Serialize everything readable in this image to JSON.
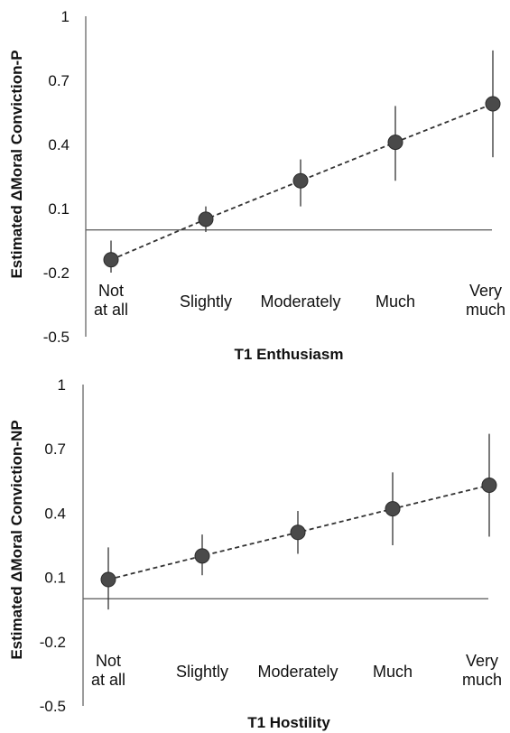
{
  "chart_data": [
    {
      "type": "scatter",
      "xlabel": "T1 Enthusiasm",
      "ylabel": "Estimated ΔMoral Conviction-P",
      "categories": [
        [
          "Not",
          "at all"
        ],
        [
          "Slightly"
        ],
        [
          "Moderately"
        ],
        [
          "Much"
        ],
        [
          "Very",
          "much"
        ]
      ],
      "values": [
        -0.14,
        0.05,
        0.23,
        0.41,
        0.59
      ],
      "ci_low": [
        -0.2,
        -0.01,
        0.11,
        0.23,
        0.34
      ],
      "ci_high": [
        -0.05,
        0.11,
        0.33,
        0.58,
        0.84
      ],
      "yticks": [
        "1",
        "0.7",
        "0.4",
        "0.1",
        "-0.2",
        "-0.5"
      ],
      "ylim": [
        -0.5,
        1
      ],
      "reference_line": 0,
      "connect": "dashed",
      "grid": false,
      "colors": {
        "marker": "#4a4a4a",
        "line": "#333333",
        "axis": "#666666"
      }
    },
    {
      "type": "scatter",
      "xlabel": "T1 Hostility",
      "ylabel": "Estimated ΔMoral Conviction-NP",
      "categories": [
        [
          "Not",
          "at all"
        ],
        [
          "Slightly"
        ],
        [
          "Moderately"
        ],
        [
          "Much"
        ],
        [
          "Very",
          "much"
        ]
      ],
      "values": [
        0.09,
        0.2,
        0.31,
        0.42,
        0.53
      ],
      "ci_low": [
        -0.05,
        0.11,
        0.21,
        0.25,
        0.29
      ],
      "ci_high": [
        0.24,
        0.3,
        0.41,
        0.59,
        0.77
      ],
      "yticks": [
        "1",
        "0.7",
        "0.4",
        "0.1",
        "-0.2",
        "-0.5"
      ],
      "ylim": [
        -0.5,
        1
      ],
      "reference_line": 0,
      "connect": "dashed",
      "grid": false,
      "colors": {
        "marker": "#4a4a4a",
        "line": "#333333",
        "axis": "#666666"
      }
    }
  ]
}
